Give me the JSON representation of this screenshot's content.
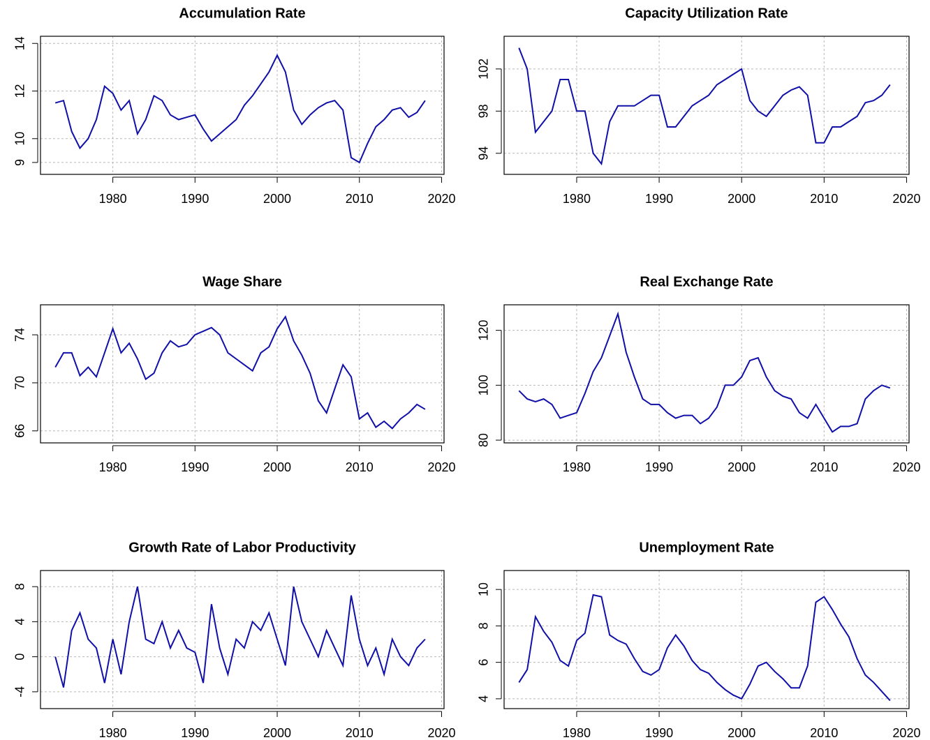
{
  "chart_data": [
    {
      "type": "line",
      "title": "Accumulation Rate",
      "color": "#1010a8",
      "grid": true,
      "x": [
        1973,
        1974,
        1975,
        1976,
        1977,
        1978,
        1979,
        1980,
        1981,
        1982,
        1983,
        1984,
        1985,
        1986,
        1987,
        1988,
        1989,
        1990,
        1991,
        1992,
        1993,
        1994,
        1995,
        1996,
        1997,
        1998,
        1999,
        2000,
        2001,
        2002,
        2003,
        2004,
        2005,
        2006,
        2007,
        2008,
        2009,
        2010,
        2011,
        2012,
        2013,
        2014,
        2015,
        2016,
        2017,
        2018
      ],
      "values": [
        11.5,
        11.6,
        10.3,
        9.6,
        10.0,
        10.8,
        12.2,
        11.9,
        11.2,
        11.6,
        10.2,
        10.8,
        11.8,
        11.6,
        11.0,
        10.8,
        10.9,
        11.0,
        10.4,
        9.9,
        10.2,
        10.5,
        10.8,
        11.4,
        11.8,
        12.3,
        12.8,
        13.5,
        12.8,
        11.2,
        10.6,
        11.0,
        11.3,
        11.5,
        11.6,
        11.2,
        9.2,
        9.0,
        9.8,
        10.5,
        10.8,
        11.2,
        11.3,
        10.9,
        11.1,
        11.6
      ],
      "xlim": [
        1971.2,
        2020.3
      ],
      "ylim": [
        8.5,
        14.3
      ],
      "xticks": [
        1980,
        1990,
        2000,
        2010,
        2020
      ],
      "yticks": [
        9,
        10,
        12,
        14
      ]
    },
    {
      "type": "line",
      "title": "Capacity Utilization Rate",
      "color": "#1010a8",
      "grid": true,
      "x": [
        1973,
        1974,
        1975,
        1976,
        1977,
        1978,
        1979,
        1980,
        1981,
        1982,
        1983,
        1984,
        1985,
        1986,
        1987,
        1988,
        1989,
        1990,
        1991,
        1992,
        1993,
        1994,
        1995,
        1996,
        1997,
        1998,
        1999,
        2000,
        2001,
        2002,
        2003,
        2004,
        2005,
        2006,
        2007,
        2008,
        2009,
        2010,
        2011,
        2012,
        2013,
        2014,
        2015,
        2016,
        2017,
        2018
      ],
      "values": [
        104,
        102,
        96,
        97,
        98,
        101,
        101,
        98,
        98,
        94,
        93,
        97,
        98.5,
        98.5,
        98.5,
        99,
        99.5,
        99.5,
        96.5,
        96.5,
        97.5,
        98.5,
        99,
        99.5,
        100.5,
        101,
        101.5,
        102,
        99,
        98,
        97.5,
        98.5,
        99.5,
        100,
        100.3,
        99.5,
        95,
        95,
        96.5,
        96.5,
        97,
        97.5,
        98.8,
        99,
        99.5,
        100.5
      ],
      "xlim": [
        1971.2,
        2020.3
      ],
      "ylim": [
        92,
        105.1
      ],
      "xticks": [
        1980,
        1990,
        2000,
        2010,
        2020
      ],
      "yticks": [
        94,
        98,
        102
      ]
    },
    {
      "type": "line",
      "title": "Wage Share",
      "color": "#1010a8",
      "grid": true,
      "x": [
        1973,
        1974,
        1975,
        1976,
        1977,
        1978,
        1979,
        1980,
        1981,
        1982,
        1983,
        1984,
        1985,
        1986,
        1987,
        1988,
        1989,
        1990,
        1991,
        1992,
        1993,
        1994,
        1995,
        1996,
        1997,
        1998,
        1999,
        2000,
        2001,
        2002,
        2003,
        2004,
        2005,
        2006,
        2007,
        2008,
        2009,
        2010,
        2011,
        2012,
        2013,
        2014,
        2015,
        2016,
        2017,
        2018
      ],
      "values": [
        71.3,
        72.5,
        72.5,
        70.6,
        71.3,
        70.5,
        72.5,
        74.5,
        72.5,
        73.3,
        72.0,
        70.3,
        70.8,
        72.5,
        73.5,
        73.0,
        73.2,
        74.0,
        74.3,
        74.6,
        74.0,
        72.5,
        72.0,
        71.5,
        71.0,
        72.5,
        73.0,
        74.5,
        75.5,
        73.5,
        72.3,
        70.8,
        68.5,
        67.5,
        69.5,
        71.5,
        70.5,
        67.0,
        67.5,
        66.3,
        66.8,
        66.2,
        67.0,
        67.5,
        68.2,
        67.8
      ],
      "xlim": [
        1971.2,
        2020.3
      ],
      "ylim": [
        65,
        76.5
      ],
      "xticks": [
        1980,
        1990,
        2000,
        2010,
        2020
      ],
      "yticks": [
        66,
        70,
        74
      ]
    },
    {
      "type": "line",
      "title": "Real Exchange Rate",
      "color": "#1010a8",
      "grid": true,
      "x": [
        1973,
        1974,
        1975,
        1976,
        1977,
        1978,
        1979,
        1980,
        1981,
        1982,
        1983,
        1984,
        1985,
        1986,
        1987,
        1988,
        1989,
        1990,
        1991,
        1992,
        1993,
        1994,
        1995,
        1996,
        1997,
        1998,
        1999,
        2000,
        2001,
        2002,
        2003,
        2004,
        2005,
        2006,
        2007,
        2008,
        2009,
        2010,
        2011,
        2012,
        2013,
        2014,
        2015,
        2016,
        2017,
        2018
      ],
      "values": [
        98,
        95,
        94,
        95,
        93,
        88,
        89,
        90,
        97,
        105,
        110,
        118,
        126,
        112,
        103,
        95,
        93,
        93,
        90,
        88,
        89,
        89,
        86,
        88,
        92,
        100,
        100,
        103,
        109,
        110,
        103,
        98,
        96,
        95,
        90,
        88,
        93,
        88,
        83,
        85,
        85,
        86,
        95,
        98,
        100,
        99
      ],
      "xlim": [
        1971.2,
        2020.3
      ],
      "ylim": [
        79,
        129.3
      ],
      "xticks": [
        1980,
        1990,
        2000,
        2010,
        2020
      ],
      "yticks": [
        80,
        100,
        120
      ]
    },
    {
      "type": "line",
      "title": "Growth Rate of Labor Productivity",
      "color": "#1010a8",
      "grid": true,
      "x": [
        1973,
        1974,
        1975,
        1976,
        1977,
        1978,
        1979,
        1980,
        1981,
        1982,
        1983,
        1984,
        1985,
        1986,
        1987,
        1988,
        1989,
        1990,
        1991,
        1992,
        1993,
        1994,
        1995,
        1996,
        1997,
        1998,
        1999,
        2000,
        2001,
        2002,
        2003,
        2004,
        2005,
        2006,
        2007,
        2008,
        2009,
        2010,
        2011,
        2012,
        2013,
        2014,
        2015,
        2016,
        2017,
        2018
      ],
      "values": [
        0,
        -3.5,
        3,
        5,
        2,
        1,
        -3,
        2,
        -2,
        4,
        8,
        2,
        1.5,
        4,
        1,
        3,
        1,
        0.5,
        -3,
        6,
        1,
        -2,
        2,
        1,
        4,
        3,
        5,
        2,
        -1,
        8,
        4,
        2,
        0,
        3,
        1,
        -1,
        7,
        2,
        -1,
        1,
        -2,
        2,
        0,
        -1,
        1,
        2
      ],
      "xlim": [
        1971.2,
        2020.3
      ],
      "ylim": [
        -5.92,
        9.84
      ],
      "xticks": [
        1980,
        1990,
        2000,
        2010,
        2020
      ],
      "yticks": [
        -4,
        0,
        4,
        8
      ]
    },
    {
      "type": "line",
      "title": "Unemployment Rate",
      "color": "#1010a8",
      "grid": true,
      "x": [
        1973,
        1974,
        1975,
        1976,
        1977,
        1978,
        1979,
        1980,
        1981,
        1982,
        1983,
        1984,
        1985,
        1986,
        1987,
        1988,
        1989,
        1990,
        1991,
        1992,
        1993,
        1994,
        1995,
        1996,
        1997,
        1998,
        1999,
        2000,
        2001,
        2002,
        2003,
        2004,
        2005,
        2006,
        2007,
        2008,
        2009,
        2010,
        2011,
        2012,
        2013,
        2014,
        2015,
        2016,
        2017,
        2018
      ],
      "values": [
        4.9,
        5.6,
        8.5,
        7.7,
        7.1,
        6.1,
        5.8,
        7.2,
        7.6,
        9.7,
        9.6,
        7.5,
        7.2,
        7.0,
        6.2,
        5.5,
        5.3,
        5.6,
        6.8,
        7.5,
        6.9,
        6.1,
        5.6,
        5.4,
        4.9,
        4.5,
        4.2,
        4.0,
        4.8,
        5.8,
        6.0,
        5.5,
        5.1,
        4.6,
        4.6,
        5.8,
        9.3,
        9.6,
        8.9,
        8.1,
        7.4,
        6.2,
        5.3,
        4.9,
        4.4,
        3.9
      ],
      "xlim": [
        1971.2,
        2020.3
      ],
      "ylim": [
        3.46,
        11.04
      ],
      "xticks": [
        1980,
        1990,
        2000,
        2010,
        2020
      ],
      "yticks": [
        4,
        6,
        8,
        10
      ]
    }
  ]
}
